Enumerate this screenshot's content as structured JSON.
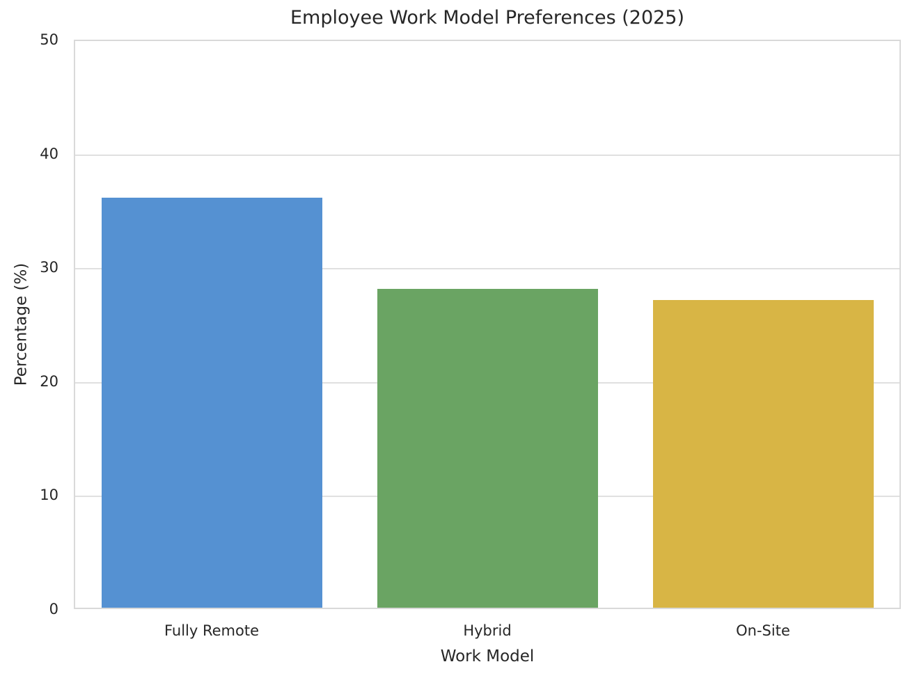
{
  "chart_data": {
    "type": "bar",
    "title": "Employee Work Model Preferences (2025)",
    "xlabel": "Work Model",
    "ylabel": "Percentage (%)",
    "categories": [
      "Fully Remote",
      "Hybrid",
      "On-Site"
    ],
    "values": [
      36,
      28,
      27
    ],
    "colors": [
      "#5591d2",
      "#6aa463",
      "#d8b545"
    ],
    "ylim": [
      0,
      50
    ],
    "yticks": [
      0,
      10,
      20,
      30,
      40,
      50
    ],
    "grid": true,
    "legend": false,
    "bar_width_fraction": 0.8
  }
}
